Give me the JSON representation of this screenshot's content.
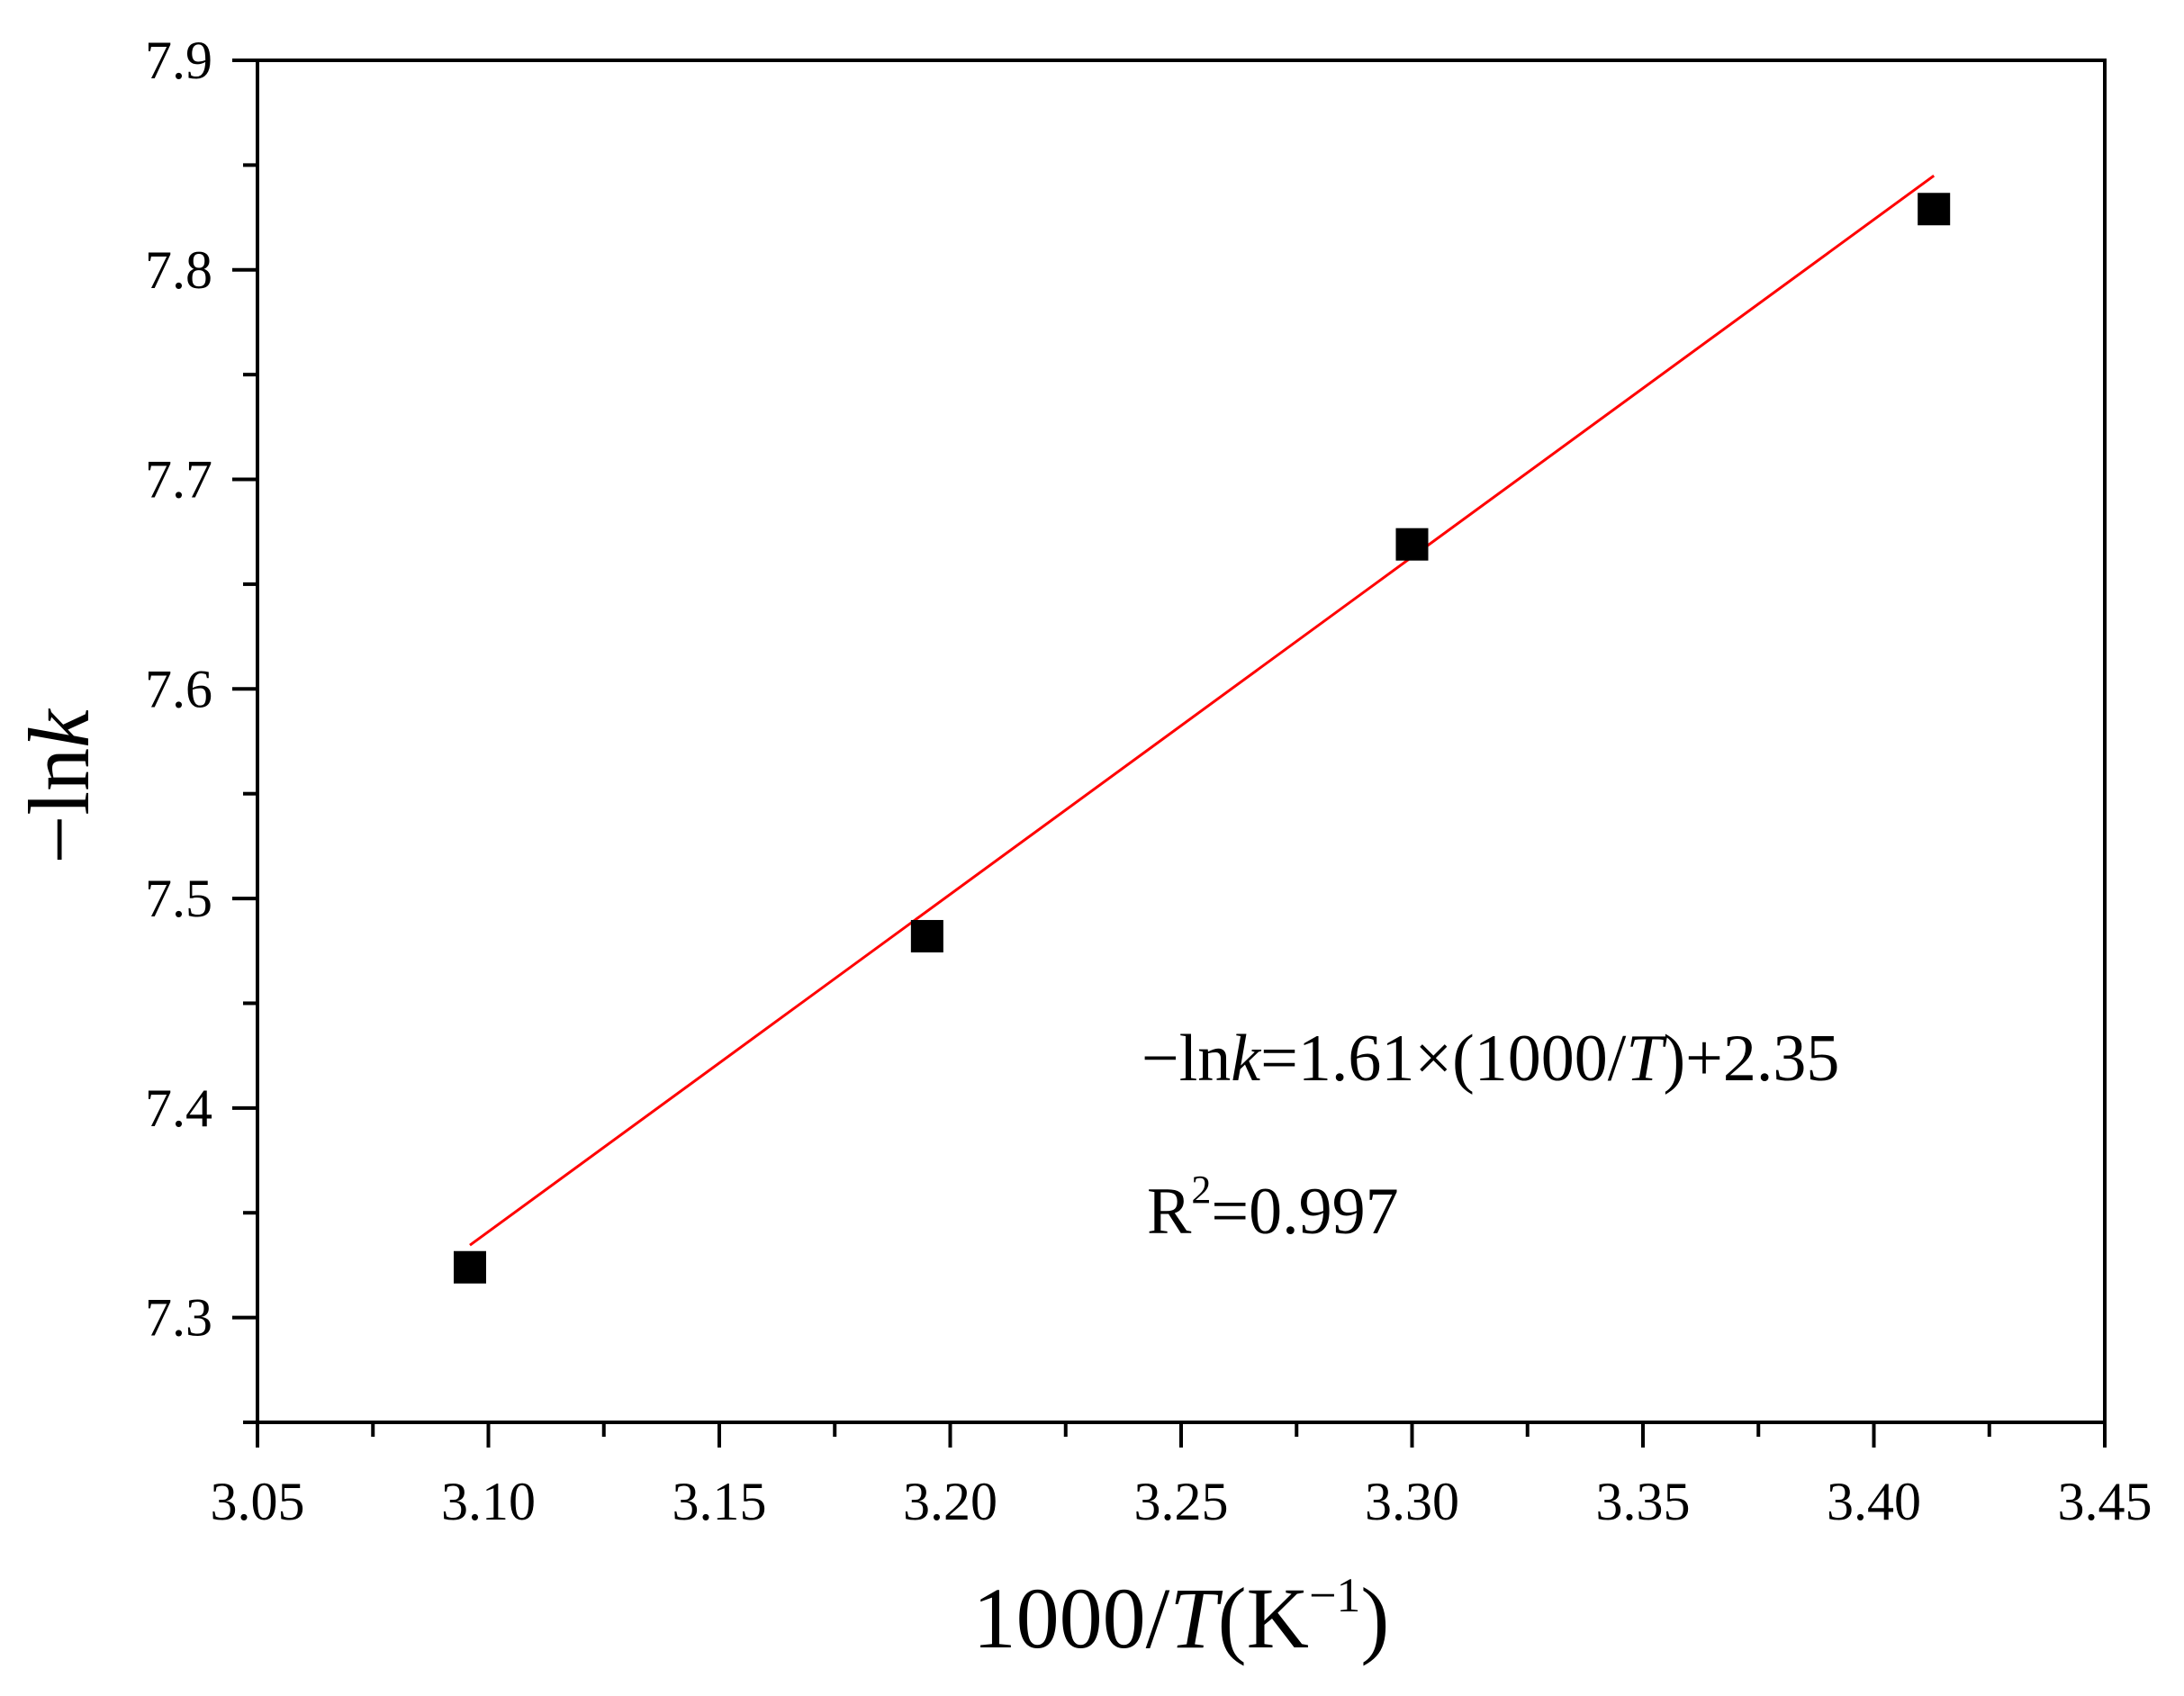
{
  "chart_data": {
    "type": "scatter",
    "xlabel": {
      "prefix": "1000/",
      "var": "T",
      "unit_open": "(K",
      "unit_sup": "−1",
      "unit_close": ")"
    },
    "ylabel": {
      "prefix": "−ln",
      "var": "k"
    },
    "xlim": [
      3.05,
      3.45
    ],
    "ylim": [
      7.25,
      7.9
    ],
    "xticks": [
      "3.05",
      "3.10",
      "3.15",
      "3.20",
      "3.25",
      "3.30",
      "3.35",
      "3.40",
      "3.45"
    ],
    "yticks": [
      "7.3",
      "7.4",
      "7.5",
      "7.6",
      "7.7",
      "7.8",
      "7.9"
    ],
    "minor_ticks": true,
    "grid": false,
    "series": [
      {
        "marker": "square",
        "color": "#000000",
        "x": [
          3.096,
          3.195,
          3.3,
          3.413
        ],
        "y": [
          7.324,
          7.482,
          7.669,
          7.829
        ]
      }
    ],
    "fit": {
      "color": "#ff0000",
      "slope": 1.61,
      "intercept": 2.35,
      "x_start": 3.096,
      "x_end": 3.413
    },
    "annotations": {
      "equation": {
        "prefix": "−ln",
        "k": "k",
        "middle": "=1.61×(1000/",
        "T": "T",
        "suffix": ")+2.35"
      },
      "r2": {
        "base": "R",
        "sup": "2",
        "value": "=0.997"
      }
    }
  }
}
